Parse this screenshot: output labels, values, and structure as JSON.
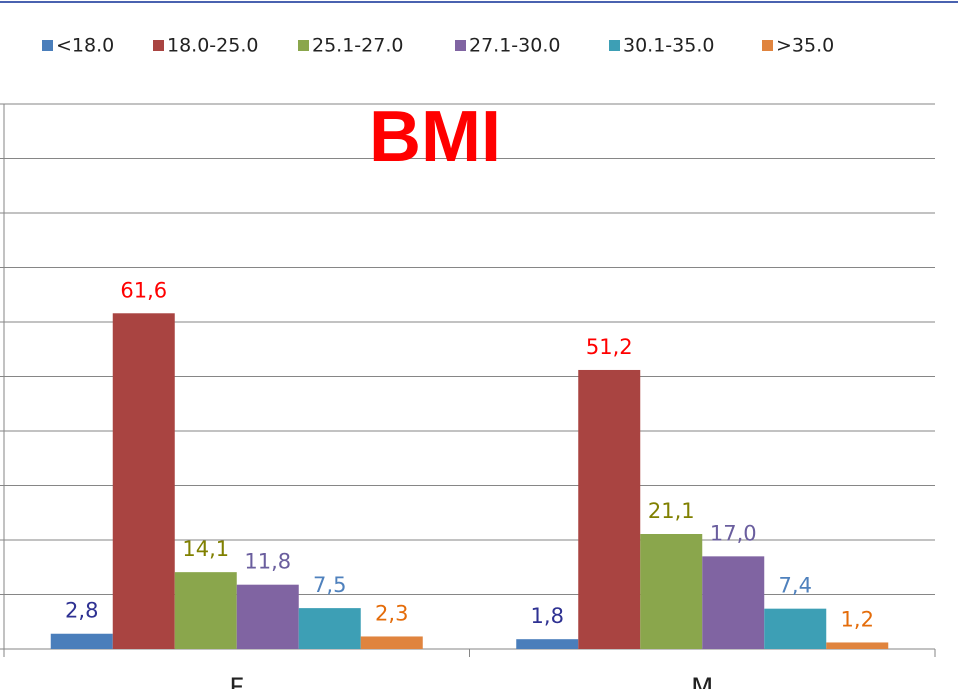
{
  "chart_data": {
    "type": "bar",
    "title": "BMI",
    "categories": [
      "F",
      "M"
    ],
    "series": [
      {
        "name": "<18.0",
        "color": "#4a7ebb",
        "label_color": "#2e3192",
        "values": [
          2.8,
          1.8
        ],
        "value_labels": [
          "2,8",
          "1,8"
        ]
      },
      {
        "name": "18.0-25.0",
        "color": "#a94441",
        "label_color": "#ff0000",
        "values": [
          61.6,
          51.2
        ],
        "value_labels": [
          "61,6",
          "51,2"
        ]
      },
      {
        "name": "25.1-27.0",
        "color": "#8aa64c",
        "label_color": "#808000",
        "values": [
          14.1,
          21.1
        ],
        "value_labels": [
          "14,1",
          "21,1"
        ]
      },
      {
        "name": "27.1-30.0",
        "color": "#8064a2",
        "label_color": "#6a5e9e",
        "values": [
          11.8,
          17.0
        ],
        "value_labels": [
          "11,8",
          "17,0"
        ]
      },
      {
        "name": "30.1-35.0",
        "color": "#3d9fb5",
        "label_color": "#4f81bd",
        "values": [
          7.5,
          7.4
        ],
        "value_labels": [
          "7,5",
          "7,4"
        ]
      },
      {
        "name": ">35.0",
        "color": "#e0843e",
        "label_color": "#e46c0a",
        "values": [
          2.3,
          1.2
        ],
        "value_labels": [
          "2,3",
          "1,2"
        ]
      }
    ],
    "ylim": [
      0,
      100
    ],
    "yticks": [
      0,
      10,
      20,
      30,
      40,
      50,
      60,
      70,
      80,
      90,
      100
    ],
    "grid": true,
    "legend": "top"
  }
}
